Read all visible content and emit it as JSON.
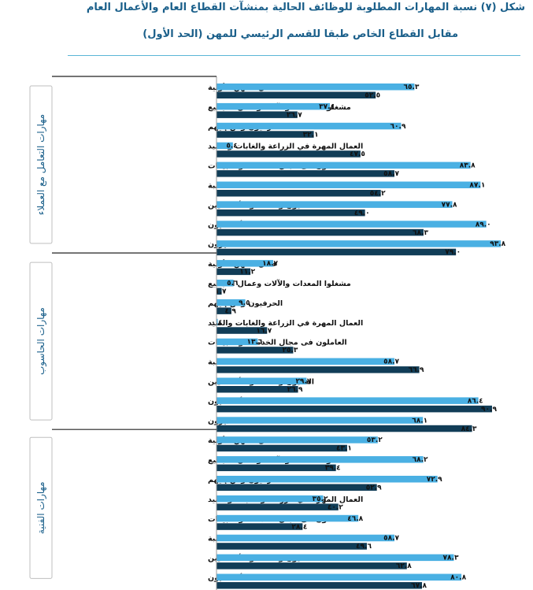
{
  "title_line1": "شكل (٧) نسبة المهارات المطلوبة للوظائف الحالية بمنشآت القطاع العام والأعمال العام",
  "title_line2": "مقابل القطاع الخاص طبقا للقسم الرئيسي للمهن (الحد الأول)",
  "colors": {
    "series1": "#4ab0e3",
    "series2": "#113d57",
    "divider": "#222222"
  },
  "chart_data": {
    "type": "bar",
    "orientation": "horizontal",
    "title": "شكل (٧) نسبة المهارات المطلوبة للوظائف الحالية بمنشآت القطاع العام والأعمال العام مقابل القطاع الخاص طبقا للقسم الرئيسي للمهن (الحد الأول)",
    "xlim": [
      0,
      100
    ],
    "groups": [
      {
        "name": "مهارات التعامل مع العملاء",
        "rows": [
          {
            "label": "عمال المهن الأولية",
            "v1": 65.3,
            "v1_text": "٦٥.٣",
            "v2": 52.5,
            "v2_text": "٥٢.٥"
          },
          {
            "label": "مشغلوا المعدات والآلات وعمال التجميع",
            "v1": 37.4,
            "v1_text": "٣٧.٤",
            "v2": 26.7,
            "v2_text": "٢٦.٧"
          },
          {
            "label": "الحرفيون ومن إليهم",
            "v1": 60.9,
            "v1_text": "٦٠.٩",
            "v2": 32.1,
            "v2_text": "٣٢.١"
          },
          {
            "label": "العمال المهرة في الزراعة والغابات والصيد",
            "v1": 5.4,
            "v1_text": "٥.٤",
            "v2": 47.5,
            "v2_text": "٤٧.٥"
          },
          {
            "label": "العاملون فى مجال الخدمات والمبيعات",
            "v1": 83.8,
            "v1_text": "٨٣.٨",
            "v2": 58.7,
            "v2_text": "٥٨.٧"
          },
          {
            "label": "الكتبة",
            "v1": 87.1,
            "v1_text": "٨٧.١",
            "v2": 54.2,
            "v2_text": "٥٤.٢"
          },
          {
            "label": "الفنيون ومساعدو الأخصائيين",
            "v1": 77.8,
            "v1_text": "٧٧.٨",
            "v2": 49.0,
            "v2_text": "٤٩.٠"
          },
          {
            "label": "الأخصائيون",
            "v1": 89.0,
            "v1_text": "٨٩.٠",
            "v2": 68.3,
            "v2_text": "٦٨.٣"
          },
          {
            "label": "المديرون",
            "v1": 93.8,
            "v1_text": "٩٣.٨",
            "v2": 79.0,
            "v2_text": "٧٩.٠"
          }
        ]
      },
      {
        "name": "مهارات الحاسوب",
        "rows": [
          {
            "label": "عمال المهن الأولية",
            "v1": 18.7,
            "v1_text": "١٨.٧",
            "v2": 11.2,
            "v2_text": "١١.٢"
          },
          {
            "label": "مشغلوا المعدات والآلات وعمال التجميع",
            "v1": 5.6,
            "v1_text": "٥.٦",
            "v2": 1.7,
            "v2_text": "١.٧"
          },
          {
            "label": "الحرفيون ومن إليهم",
            "v1": 9.5,
            "v1_text": "٩.٥",
            "v2": 4.9,
            "v2_text": "٤.٩"
          },
          {
            "label": "العمال المهرة في الزراعة والغابات والصيد",
            "v1": 0.4,
            "v1_text": "٠.٤",
            "v2": 16.7,
            "v2_text": "١٦.٧"
          },
          {
            "label": "العاملون فى مجال الخدمات والمبيعات",
            "v1": 13.6,
            "v1_text": "١٣.٦",
            "v2": 25.3,
            "v2_text": "٢٥.٣"
          },
          {
            "label": "الكتبة",
            "v1": 58.7,
            "v1_text": "٥٨.٧",
            "v2": 66.9,
            "v2_text": "٦٦.٩"
          },
          {
            "label": "الفنيون ومساعدو الأخصائيين",
            "v1": 29.7,
            "v1_text": "٢٩.٧",
            "v2": 26.9,
            "v2_text": "٢٦.٩"
          },
          {
            "label": "الأخصائيون",
            "v1": 86.4,
            "v1_text": "٨٦.٤",
            "v2": 90.9,
            "v2_text": "٩٠.٩"
          },
          {
            "label": "المديرون",
            "v1": 68.1,
            "v1_text": "٦٨.١",
            "v2": 84.3,
            "v2_text": "٨٤.٣"
          }
        ]
      },
      {
        "name": "مهارات الفنية",
        "rows": [
          {
            "label": "عمال المهن الأولية",
            "v1": 53.2,
            "v1_text": "٥٣.٢",
            "v2": 43.1,
            "v2_text": "٤٣.١"
          },
          {
            "label": "مشغلوا المعدات والآلات وعمال التجميع",
            "v1": 68.2,
            "v1_text": "٦٨.٢",
            "v2": 39.4,
            "v2_text": "٣٩.٤"
          },
          {
            "label": "الحرفيون ومن إليهم",
            "v1": 72.9,
            "v1_text": "٧٢.٩",
            "v2": 52.9,
            "v2_text": "٥٢.٩"
          },
          {
            "label": "العمال المهرة في الزراعة والغابات والصيد",
            "v1": 35.2,
            "v1_text": "٣٥.٢",
            "v2": 40.2,
            "v2_text": "٤٠.٢"
          },
          {
            "label": "العاملون فى مجال الخدمات والمبيعات",
            "v1": 46.8,
            "v1_text": "٤٦.٨",
            "v2": 28.4,
            "v2_text": "٢٨.٤"
          },
          {
            "label": "الكتبة",
            "v1": 58.7,
            "v1_text": "٥٨.٧",
            "v2": 49.6,
            "v2_text": "٤٩.٦"
          },
          {
            "label": "الفنيون ومساعدو الأخصائيين",
            "v1": 78.3,
            "v1_text": "٧٨.٣",
            "v2": 62.8,
            "v2_text": "٦٢.٨"
          },
          {
            "label": "الأخصائيون",
            "v1": 80.8,
            "v1_text": "٨٠.٨",
            "v2": 67.8,
            "v2_text": "٦٧.٨"
          }
        ]
      }
    ]
  }
}
